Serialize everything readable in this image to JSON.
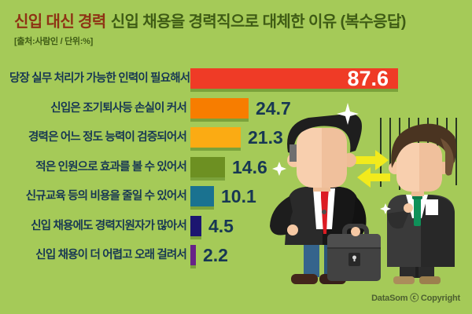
{
  "header": {
    "title_highlight": "신입 대신 경력",
    "title_rest": "신입 채용을 경력직으로 대체한 이유 (복수응답)",
    "subtitle": "[출처:사람인 / 단위:%]"
  },
  "chart_data": {
    "type": "bar",
    "orientation": "horizontal",
    "title": "신입 대신 경력 신입 채용을 경력직으로 대체한 이유 (복수응답)",
    "source": "사람인",
    "unit": "%",
    "xlim": [
      0,
      100
    ],
    "categories": [
      "당장 실무 처리가 가능한 인력이 필요해서",
      "신입은 조기퇴사등 손실이 커서",
      "경력은 어느 정도 능력이 검증되어서",
      "적은 인원으로 효과를 볼 수 있어서",
      "신규교육 등의 비용을 줄일 수 있어서",
      "신입 채용에도 경력지원자가 많아서",
      "신입 채용이 더 어렵고 오래 걸려서"
    ],
    "values": [
      87.6,
      24.7,
      21.3,
      14.6,
      10.1,
      4.5,
      2.2
    ],
    "bar_colors": [
      "#ef3b26",
      "#f77d00",
      "#fbab13",
      "#6d9022",
      "#1a7290",
      "#1c1670",
      "#672388"
    ]
  },
  "colors": {
    "background": "#a5ca58",
    "title_highlight": "#8e3214",
    "title_green": "#3f5c15",
    "value_label_ink": "#173753",
    "bar_shadow": "#7ba23b",
    "arrow_yellow": "#f2ea1c"
  },
  "icons": {
    "illustration": "two-businessmen-exchange",
    "sparkle": "✦",
    "arrows": "⇄"
  },
  "footer": {
    "copyright": "DataSom ⓒ Copyright"
  }
}
